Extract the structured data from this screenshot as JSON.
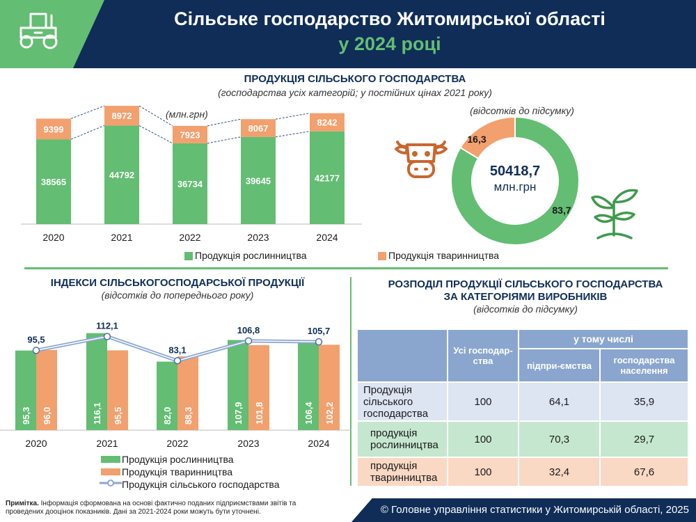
{
  "header": {
    "title_line1": "Сільське господарство Житомирської області",
    "title_line2": "у 2024 році"
  },
  "section_production": {
    "title": "ПРОДУКЦІЯ СІЛЬСЬКОГО ГОСПОДАРСТВА",
    "subtitle": "(господарства усіх категорій; у постійних цінах 2021 року)",
    "unit": "(млн.грн)",
    "donut_unit": "(відсотків до підсумку)",
    "donut_total": "50418,7",
    "donut_total_unit": "млн.грн",
    "legend_plant": "Продукція рослинництва",
    "legend_animal": "Продукція тваринництва"
  },
  "section_indices": {
    "title": "ІНДЕКСИ СІЛЬСЬКОГОСПОДАРСЬКОЇ ПРОДУКЦІЇ",
    "subtitle": "(відсотків до попереднього року)",
    "legend_plant": "Продукція рослинництва",
    "legend_animal": "Продукція тваринництва",
    "legend_total": "Продукція сільського господарства"
  },
  "section_distribution": {
    "title_line1": "РОЗПОДІЛ ПРОДУКЦІЇ СІЛЬСЬКОГО ГОСПОДАРСТВА",
    "title_line2": "ЗА КАТЕГОРІЯМИ ВИРОБНИКІВ",
    "subtitle": "(відсотків до підсумку)",
    "col_all": "Усі господар-ства",
    "col_group": "у тому числі",
    "col_enterprises": "підпри-ємства",
    "col_households": "господарства населення",
    "rows": [
      {
        "label": "Продукція сільського господарства",
        "all": "100",
        "enterprises": "64,1",
        "households": "35,9"
      },
      {
        "label": "продукція рослинництва",
        "all": "100",
        "enterprises": "70,3",
        "households": "29,7"
      },
      {
        "label": "продукція тваринництва",
        "all": "100",
        "enterprises": "32,4",
        "households": "67,6"
      }
    ]
  },
  "footer": {
    "note_bold": "Примітка.",
    "note_text": " Інформація сформована на основі фактично поданих підприємствами звітів та проведених дооцінок показників. Дані за 2021-2024 роки можуть бути уточнені.",
    "copyright": "© Головне управління статистики у Житомирській області, 2025"
  },
  "colors": {
    "navy": "#0f2d57",
    "green": "#63bd73",
    "orange": "#f2a06e",
    "line_blue": "#8aa6cf"
  },
  "icons": [
    "tractor-icon",
    "cow-icon",
    "sprout-icon"
  ],
  "chart_data": [
    {
      "type": "bar",
      "stacked": true,
      "categories": [
        "2020",
        "2021",
        "2022",
        "2023",
        "2024"
      ],
      "series": [
        {
          "name": "Продукція рослинництва",
          "values": [
            38565,
            44792,
            36734,
            39645,
            42177
          ],
          "color": "#63bd73"
        },
        {
          "name": "Продукція тваринництва",
          "values": [
            9399,
            8972,
            7923,
            8067,
            8242
          ],
          "color": "#f2a06e"
        }
      ],
      "ylim": [
        0,
        56000
      ]
    },
    {
      "type": "pie",
      "donut": true,
      "slices": [
        {
          "name": "Продукція рослинництва",
          "value": 83.7,
          "label": "83,7",
          "color": "#63bd73"
        },
        {
          "name": "Продукція тваринництва",
          "value": 16.3,
          "label": "16,3",
          "color": "#f2a06e"
        }
      ]
    },
    {
      "type": "bar",
      "categories": [
        "2020",
        "2021",
        "2022",
        "2023",
        "2024"
      ],
      "series": [
        {
          "name": "Продукція рослинництва",
          "values": [
            95.3,
            116.1,
            82.0,
            107.9,
            106.4
          ],
          "labels": [
            "95,3",
            "116,1",
            "82,0",
            "107,9",
            "106,4"
          ],
          "color": "#63bd73"
        },
        {
          "name": "Продукція тваринництва",
          "values": [
            96.0,
            95.5,
            88.3,
            101.8,
            102.2
          ],
          "labels": [
            "96,0",
            "95,5",
            "88,3",
            "101,8",
            "102,2"
          ],
          "color": "#f2a06e"
        },
        {
          "name": "Продукція сільського господарства",
          "kind": "line",
          "values": [
            95.5,
            112.1,
            83.1,
            106.8,
            105.7
          ],
          "labels": [
            "95,5",
            "112,1",
            "83,1",
            "106,8",
            "105,7"
          ],
          "color": "#8aa6cf"
        }
      ],
      "ylim": [
        0,
        125
      ]
    }
  ]
}
